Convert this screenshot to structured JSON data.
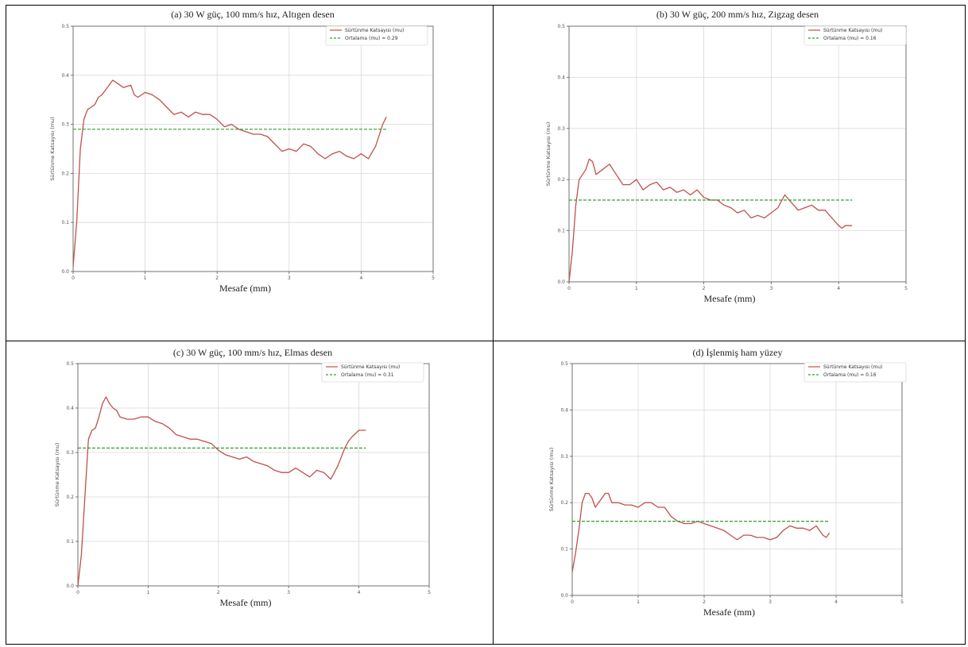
{
  "chart_data": [
    {
      "type": "line",
      "title": "(a) 30 W güç, 100 mm/s hız, Altıgen desen",
      "xlabel": "Mesafe (mm)",
      "ylabel": "Sürtünme Katsayısı (mu)",
      "xlim": [
        0,
        5
      ],
      "ylim": [
        0,
        0.5
      ],
      "xticks": [
        "0",
        "1",
        "2",
        "3",
        "4",
        "5"
      ],
      "yticks": [
        "0.0",
        "0.1",
        "0.2",
        "0.3",
        "0.4",
        "0.5"
      ],
      "grid": true,
      "legend_position": "top-right",
      "series": [
        {
          "name": "Sürtünme Katsayısı (mu)",
          "style": "solid",
          "x": [
            0,
            0.05,
            0.1,
            0.15,
            0.2,
            0.25,
            0.3,
            0.35,
            0.4,
            0.45,
            0.5,
            0.55,
            0.6,
            0.7,
            0.8,
            0.85,
            0.9,
            1.0,
            1.1,
            1.2,
            1.3,
            1.4,
            1.5,
            1.6,
            1.7,
            1.8,
            1.9,
            2.0,
            2.1,
            2.2,
            2.3,
            2.4,
            2.5,
            2.6,
            2.7,
            2.8,
            2.9,
            3.0,
            3.1,
            3.2,
            3.3,
            3.4,
            3.5,
            3.6,
            3.7,
            3.8,
            3.9,
            4.0,
            4.1,
            4.2,
            4.3,
            4.35
          ],
          "y": [
            0.01,
            0.1,
            0.25,
            0.31,
            0.33,
            0.335,
            0.34,
            0.355,
            0.36,
            0.37,
            0.38,
            0.39,
            0.385,
            0.375,
            0.38,
            0.36,
            0.355,
            0.365,
            0.36,
            0.35,
            0.335,
            0.32,
            0.325,
            0.315,
            0.325,
            0.32,
            0.32,
            0.31,
            0.295,
            0.3,
            0.29,
            0.285,
            0.28,
            0.28,
            0.275,
            0.26,
            0.245,
            0.25,
            0.245,
            0.26,
            0.255,
            0.24,
            0.23,
            0.24,
            0.245,
            0.235,
            0.23,
            0.24,
            0.23,
            0.255,
            0.3,
            0.315
          ]
        },
        {
          "name": "Ortalama (mu) = 0.29",
          "style": "dashed",
          "x": [
            0,
            4.35
          ],
          "y": [
            0.29,
            0.29
          ]
        }
      ]
    },
    {
      "type": "line",
      "title": "(b) 30 W güç, 200 mm/s hız, Zigzag desen",
      "xlabel": "Mesafe (mm)",
      "ylabel": "Sürtünme Katsayısı (mu)",
      "xlim": [
        0,
        5
      ],
      "ylim": [
        0,
        0.5
      ],
      "xticks": [
        "0",
        "1",
        "2",
        "3",
        "4",
        "5"
      ],
      "yticks": [
        "0.0",
        "0.1",
        "0.2",
        "0.3",
        "0.4",
        "0.5"
      ],
      "grid": true,
      "legend_position": "top-right",
      "series": [
        {
          "name": "Sürtünme Katsayısı (mu)",
          "style": "solid",
          "x": [
            0,
            0.05,
            0.1,
            0.15,
            0.2,
            0.25,
            0.3,
            0.35,
            0.4,
            0.5,
            0.6,
            0.7,
            0.8,
            0.9,
            1.0,
            1.1,
            1.2,
            1.3,
            1.4,
            1.5,
            1.6,
            1.7,
            1.8,
            1.9,
            2.0,
            2.1,
            2.2,
            2.3,
            2.4,
            2.5,
            2.6,
            2.7,
            2.8,
            2.9,
            3.0,
            3.1,
            3.2,
            3.3,
            3.4,
            3.5,
            3.6,
            3.7,
            3.8,
            3.9,
            4.0,
            4.05,
            4.1,
            4.2
          ],
          "y": [
            0.0,
            0.06,
            0.15,
            0.2,
            0.21,
            0.22,
            0.24,
            0.235,
            0.21,
            0.22,
            0.23,
            0.21,
            0.19,
            0.19,
            0.2,
            0.18,
            0.19,
            0.195,
            0.18,
            0.185,
            0.175,
            0.18,
            0.17,
            0.18,
            0.165,
            0.16,
            0.16,
            0.15,
            0.145,
            0.135,
            0.14,
            0.125,
            0.13,
            0.125,
            0.135,
            0.145,
            0.17,
            0.155,
            0.14,
            0.145,
            0.15,
            0.14,
            0.14,
            0.125,
            0.11,
            0.105,
            0.11,
            0.11
          ]
        },
        {
          "name": "Ortalama (mu) = 0.16",
          "style": "dashed",
          "x": [
            0,
            4.2
          ],
          "y": [
            0.16,
            0.16
          ]
        }
      ]
    },
    {
      "type": "line",
      "title": "(c) 30 W güç, 100 mm/s hız, Elmas desen",
      "xlabel": "Mesafe (mm)",
      "ylabel": "Sürtünme Katsayısı (mu)",
      "xlim": [
        0,
        5
      ],
      "ylim": [
        0,
        0.5
      ],
      "xticks": [
        "0",
        "1",
        "2",
        "3",
        "4",
        "5"
      ],
      "yticks": [
        "0.0",
        "0.1",
        "0.2",
        "0.3",
        "0.4",
        "0.5"
      ],
      "grid": true,
      "legend_position": "top-right",
      "series": [
        {
          "name": "Sürtünme Katsayısı (mu)",
          "style": "solid",
          "x": [
            0,
            0.05,
            0.1,
            0.15,
            0.2,
            0.25,
            0.3,
            0.35,
            0.4,
            0.45,
            0.5,
            0.55,
            0.6,
            0.7,
            0.8,
            0.9,
            1.0,
            1.1,
            1.2,
            1.3,
            1.4,
            1.5,
            1.6,
            1.7,
            1.8,
            1.9,
            2.0,
            2.1,
            2.2,
            2.3,
            2.4,
            2.5,
            2.6,
            2.7,
            2.8,
            2.9,
            3.0,
            3.1,
            3.2,
            3.3,
            3.4,
            3.5,
            3.6,
            3.7,
            3.8,
            3.85,
            3.9,
            4.0,
            4.1
          ],
          "y": [
            0.0,
            0.07,
            0.2,
            0.33,
            0.35,
            0.355,
            0.38,
            0.41,
            0.425,
            0.41,
            0.4,
            0.395,
            0.38,
            0.375,
            0.375,
            0.38,
            0.38,
            0.37,
            0.365,
            0.355,
            0.34,
            0.335,
            0.33,
            0.33,
            0.325,
            0.32,
            0.305,
            0.295,
            0.29,
            0.285,
            0.29,
            0.28,
            0.275,
            0.27,
            0.26,
            0.255,
            0.255,
            0.265,
            0.255,
            0.245,
            0.26,
            0.255,
            0.24,
            0.27,
            0.31,
            0.325,
            0.335,
            0.35,
            0.35
          ]
        },
        {
          "name": "Ortalama (mu) = 0.31",
          "style": "dashed",
          "x": [
            0,
            4.1
          ],
          "y": [
            0.31,
            0.31
          ]
        }
      ]
    },
    {
      "type": "line",
      "title": "(d) İşlenmiş ham yüzey",
      "xlabel": "Mesafe (mm)",
      "ylabel": "Sürtünme Katsayısı (mu)",
      "xlim": [
        0,
        5
      ],
      "ylim": [
        0,
        0.5
      ],
      "xticks": [
        "0",
        "1",
        "2",
        "3",
        "4",
        "5"
      ],
      "yticks": [
        "0.0",
        "0.1",
        "0.2",
        "0.3",
        "0.4",
        "0.5"
      ],
      "grid": true,
      "legend_position": "top-right",
      "series": [
        {
          "name": "Sürtünme Katsayısı (mu)",
          "style": "solid",
          "x": [
            0,
            0.05,
            0.1,
            0.15,
            0.2,
            0.25,
            0.3,
            0.35,
            0.4,
            0.5,
            0.55,
            0.6,
            0.7,
            0.8,
            0.9,
            1.0,
            1.1,
            1.2,
            1.3,
            1.4,
            1.5,
            1.6,
            1.7,
            1.8,
            1.9,
            2.0,
            2.1,
            2.2,
            2.3,
            2.4,
            2.5,
            2.6,
            2.7,
            2.8,
            2.9,
            3.0,
            3.1,
            3.2,
            3.3,
            3.4,
            3.5,
            3.6,
            3.7,
            3.8,
            3.85,
            3.9
          ],
          "y": [
            0.05,
            0.09,
            0.14,
            0.2,
            0.22,
            0.22,
            0.21,
            0.19,
            0.2,
            0.22,
            0.22,
            0.2,
            0.2,
            0.195,
            0.195,
            0.19,
            0.2,
            0.2,
            0.19,
            0.19,
            0.17,
            0.16,
            0.155,
            0.155,
            0.16,
            0.155,
            0.15,
            0.145,
            0.14,
            0.13,
            0.12,
            0.13,
            0.13,
            0.125,
            0.125,
            0.12,
            0.125,
            0.14,
            0.15,
            0.145,
            0.145,
            0.14,
            0.15,
            0.13,
            0.125,
            0.135
          ]
        },
        {
          "name": "Ortalama (mu) = 0.16",
          "style": "dashed",
          "x": [
            0,
            3.9
          ],
          "y": [
            0.16,
            0.16
          ]
        }
      ]
    }
  ],
  "colors": {
    "friction": "#c0504d",
    "mean": "#2ca02c",
    "grid": "#d9d9d9",
    "axis": "#555555"
  }
}
